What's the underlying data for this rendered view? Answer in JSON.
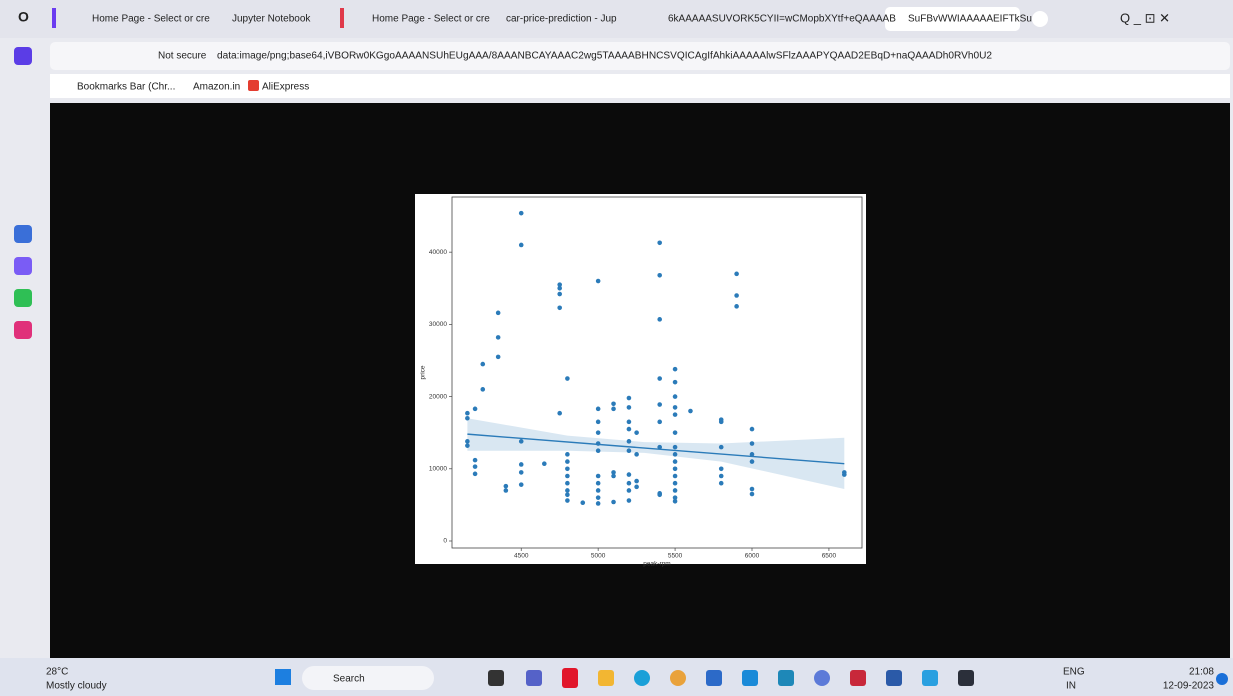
{
  "browser": {
    "tabs": [
      "Home Page - Select or cre",
      "Jupyter Notebook",
      "Home Page - Select or cre",
      "car-price-prediction - Jup",
      "6kAAAAASUVORK5CYII=",
      "wCMopbXYtf+eQAAAAB",
      "SuFBvWWIAAAAAEIFTkSu"
    ],
    "security": "Not secure",
    "url": "data:image/png;base64,iVBORw0KGgoAAAANSUhEUgAAA/8AAANBCAYAAAC2wg5TAAAABHNCSVQICAgIfAhkiAAAAAlwSFlzAAAPYQAAD2EBqD+naQAAADh0RVh0U2",
    "bookmarks": [
      "Bookmarks Bar (Chr...",
      "Amazon.in",
      "AliExpress"
    ]
  },
  "chart_data": {
    "type": "scatter",
    "x_label": "peak-rpm",
    "y_label": "price",
    "color": "#2b7bb9",
    "x": [
      4150,
      4150,
      4150,
      4150,
      4200,
      4200,
      4200,
      4200,
      4250,
      4250,
      4350,
      4350,
      4350,
      4400,
      4400,
      4500,
      4500,
      4500,
      4500,
      4500,
      4500,
      4650,
      4750,
      4750,
      4750,
      4750,
      4750,
      4800,
      4800,
      4800,
      4800,
      4800,
      4800,
      4800,
      4800,
      4800,
      4900,
      5000,
      5000,
      5000,
      5000,
      5000,
      5000,
      5000,
      5000,
      5000,
      5000,
      5000,
      5100,
      5100,
      5100,
      5100,
      5100,
      5200,
      5200,
      5200,
      5200,
      5200,
      5200,
      5200,
      5200,
      5200,
      5200,
      5250,
      5250,
      5250,
      5250,
      5400,
      5400,
      5400,
      5400,
      5400,
      5400,
      5400,
      5400,
      5400,
      5500,
      5500,
      5500,
      5500,
      5500,
      5500,
      5500,
      5500,
      5500,
      5500,
      5500,
      5500,
      5500,
      5500,
      5500,
      5600,
      5800,
      5800,
      5800,
      5800,
      5800,
      5800,
      5900,
      5900,
      5900,
      6000,
      6000,
      6000,
      6000,
      6000,
      6000,
      6600,
      6600
    ],
    "values": [
      17700,
      17000,
      13800,
      13200,
      18300,
      11200,
      10300,
      9300,
      24500,
      21000,
      31600,
      28200,
      25500,
      7600,
      7000,
      45400,
      41000,
      13800,
      10600,
      9500,
      7800,
      10700,
      35500,
      35000,
      34200,
      32300,
      17700,
      22500,
      12000,
      11000,
      10000,
      9000,
      8000,
      7000,
      6400,
      5600,
      5300,
      36000,
      18300,
      16500,
      15000,
      13500,
      12500,
      9000,
      8000,
      7000,
      6000,
      5200,
      19000,
      18300,
      9500,
      9000,
      5400,
      19800,
      18500,
      16500,
      15500,
      13800,
      12500,
      9200,
      8000,
      7000,
      5600,
      15000,
      12000,
      8300,
      7500,
      41300,
      36800,
      30700,
      22500,
      18900,
      16500,
      13000,
      6600,
      6400,
      23800,
      22000,
      20000,
      18500,
      17500,
      15000,
      13000,
      12000,
      11000,
      10000,
      9000,
      8000,
      7000,
      6000,
      5500,
      18000,
      16800,
      16500,
      13000,
      10000,
      9000,
      8000,
      37000,
      34000,
      32500,
      15500,
      13500,
      12000,
      11000,
      7200,
      6500,
      9500,
      9200
    ],
    "regression": {
      "x": [
        4150,
        6600
      ],
      "y": [
        14800,
        10700
      ]
    },
    "ci_band": {
      "x": [
        4150,
        4800,
        5300,
        5800,
        6600
      ],
      "lower": [
        12500,
        12500,
        12200,
        11000,
        7200
      ],
      "upper": [
        17000,
        14600,
        13700,
        13500,
        14300
      ]
    },
    "xlim": [
      4050,
      6715
    ],
    "ylim": [
      -970,
      47640
    ],
    "xticks": [
      4500,
      5000,
      5500,
      6000,
      6500
    ],
    "yticks": [
      0,
      10000,
      20000,
      30000,
      40000
    ]
  },
  "taskbar": {
    "temperature": "28°C",
    "weather": "Mostly cloudy",
    "search": "Search",
    "language": "ENG",
    "region": "IN",
    "time": "21:08",
    "date": "12-09-2023"
  }
}
